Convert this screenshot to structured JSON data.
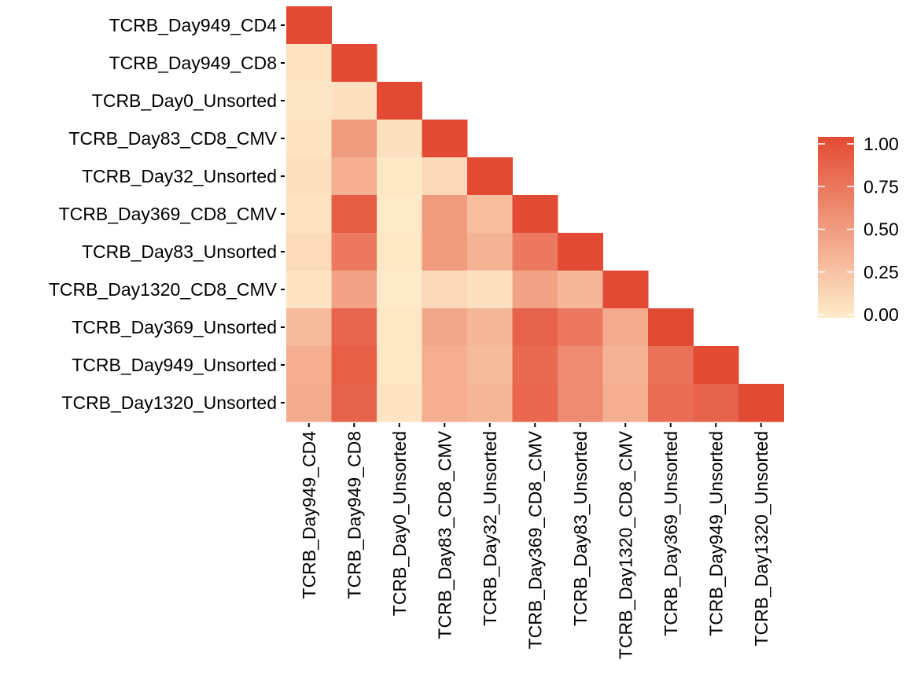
{
  "chart_data": {
    "type": "heatmap",
    "title": "",
    "xlabel": "",
    "ylabel": "",
    "labels": [
      "TCRB_Day949_CD4",
      "TCRB_Day949_CD8",
      "TCRB_Day0_Unsorted",
      "TCRB_Day83_CD8_CMV",
      "TCRB_Day32_Unsorted",
      "TCRB_Day369_CD8_CMV",
      "TCRB_Day83_Unsorted",
      "TCRB_Day1320_CD8_CMV",
      "TCRB_Day369_Unsorted",
      "TCRB_Day949_Unsorted",
      "TCRB_Day1320_Unsorted"
    ],
    "matrix": [
      [
        1.0
      ],
      [
        0.05,
        1.0
      ],
      [
        0.03,
        0.07,
        1.0
      ],
      [
        0.04,
        0.5,
        0.06,
        1.0
      ],
      [
        0.07,
        0.38,
        0.02,
        0.12,
        1.0
      ],
      [
        0.05,
        0.88,
        0.01,
        0.5,
        0.28,
        1.0
      ],
      [
        0.1,
        0.7,
        0.02,
        0.5,
        0.35,
        0.7,
        1.0
      ],
      [
        0.04,
        0.45,
        0.01,
        0.12,
        0.07,
        0.45,
        0.32,
        1.0
      ],
      [
        0.3,
        0.83,
        0.02,
        0.42,
        0.32,
        0.85,
        0.7,
        0.4,
        1.0
      ],
      [
        0.38,
        0.87,
        0.02,
        0.38,
        0.3,
        0.8,
        0.6,
        0.35,
        0.75,
        1.0
      ],
      [
        0.4,
        0.85,
        0.04,
        0.38,
        0.33,
        0.82,
        0.6,
        0.38,
        0.78,
        0.85,
        1.0
      ]
    ],
    "color_scale": {
      "low": "#FEEBC9",
      "high": "#E34A33",
      "domain": [
        0,
        1
      ]
    },
    "legend": {
      "position": "right",
      "ticks": [
        "0.00",
        "0.25",
        "0.50",
        "0.75",
        "1.00"
      ]
    },
    "grid": false
  }
}
